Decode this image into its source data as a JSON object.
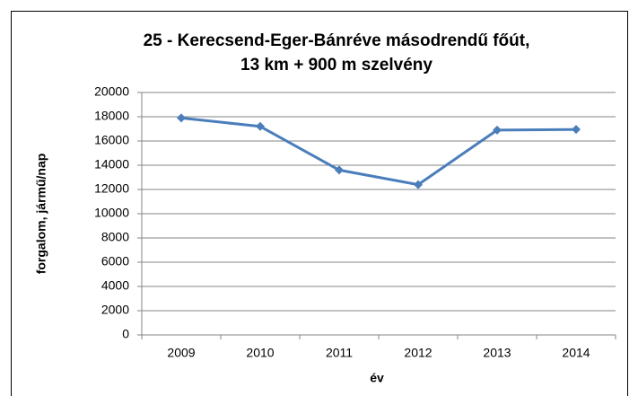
{
  "chart_data": {
    "type": "line",
    "title": [
      "25 - Kerecsend-Eger-Bánréve másodrendű főút,",
      "13 km + 900 m szelvény"
    ],
    "x_label": "év",
    "y_label": "forgalom, jármű/nap",
    "categories": [
      "2009",
      "2010",
      "2011",
      "2012",
      "2013",
      "2014"
    ],
    "series": [
      {
        "name": "forgalom",
        "color": "#4a7ebb",
        "values": [
          17900,
          17200,
          13600,
          12400,
          16900,
          16950
        ]
      }
    ],
    "ylim": [
      0,
      20000
    ],
    "yticks": [
      0,
      2000,
      4000,
      6000,
      8000,
      10000,
      12000,
      14000,
      16000,
      18000,
      20000
    ],
    "grid": true
  }
}
